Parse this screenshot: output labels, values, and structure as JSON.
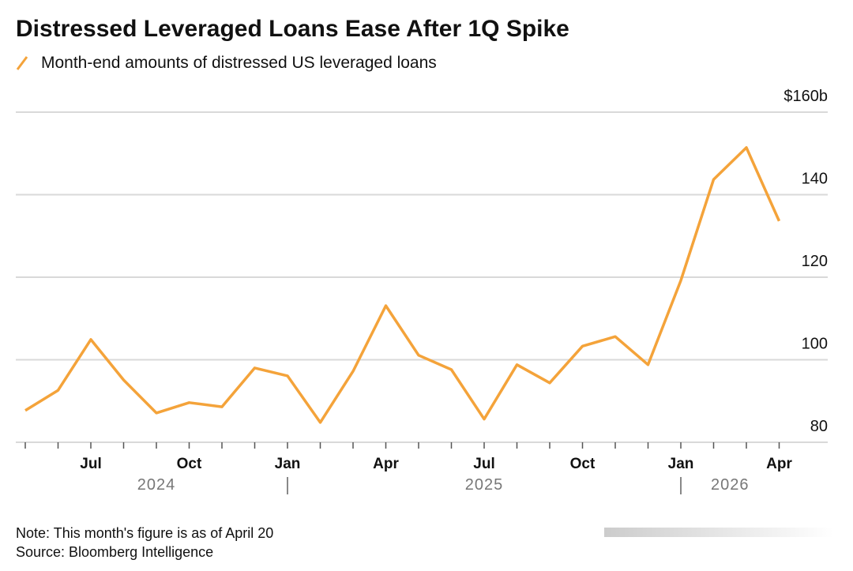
{
  "chart_data": {
    "type": "line",
    "title": "Distressed Leveraged Loans Ease After 1Q Spike",
    "subtitle": "Month-end amounts of distressed US leveraged loans",
    "categories": [
      null,
      null,
      "Jul",
      null,
      null,
      "Oct",
      null,
      null,
      "Jan",
      null,
      null,
      "Apr",
      null,
      null,
      "Jul",
      null,
      null,
      "Oct",
      null,
      null,
      "Jan",
      null,
      null,
      "Apr"
    ],
    "year_labels": [
      "2024",
      "2025",
      "2026"
    ],
    "series": [
      {
        "name": "Month-end amounts of distressed US leveraged loans",
        "color": "#f4a33a",
        "values": [
          87.7,
          92.6,
          104.9,
          95.1,
          87.1,
          89.6,
          88.6,
          98.0,
          96.1,
          84.8,
          97.2,
          113.1,
          101.1,
          97.6,
          85.6,
          98.8,
          94.4,
          103.3,
          105.6,
          98.8,
          119.2,
          143.7,
          151.4,
          133.6
        ]
      }
    ],
    "ylim": [
      80,
      160
    ],
    "yticks": [
      80,
      100,
      120,
      140,
      {
        "value": 160,
        "label": "$160b"
      }
    ],
    "grid": true,
    "notes": [
      "Note: This month's figure is as of April 20",
      "Source: Bloomberg Intelligence"
    ]
  }
}
